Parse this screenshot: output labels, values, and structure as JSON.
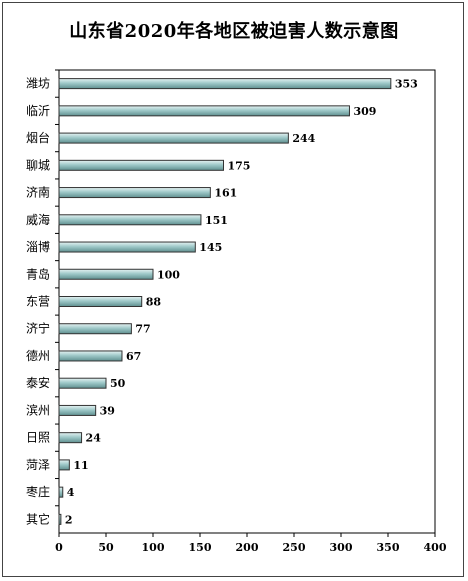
{
  "chart_data": {
    "type": "bar",
    "orientation": "horizontal",
    "title": "山东省2020年各地区被迫害人数示意图",
    "xlabel": "",
    "ylabel": "",
    "categories": [
      "潍坊",
      "临沂",
      "烟台",
      "聊城",
      "济南",
      "威海",
      "淄博",
      "青岛",
      "东营",
      "济宁",
      "德州",
      "泰安",
      "滨州",
      "日照",
      "菏泽",
      "枣庄",
      "其它"
    ],
    "values": [
      353,
      309,
      244,
      175,
      161,
      151,
      145,
      100,
      88,
      77,
      67,
      50,
      39,
      24,
      11,
      4,
      2
    ],
    "xlim": [
      0,
      400
    ],
    "xticks": [
      "0",
      "50",
      "100",
      "150",
      "200",
      "250",
      "300",
      "350",
      "400"
    ],
    "grid": false,
    "legend": "none",
    "bar_color": "#9fc9c9",
    "bar_stroke": "#333333"
  }
}
